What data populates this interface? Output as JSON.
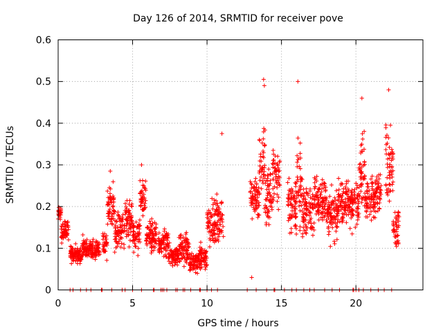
{
  "chart_data": {
    "type": "scatter",
    "title": "Day 126 of 2014, SRMTID for receiver pove",
    "xlabel": "GPS time / hours",
    "ylabel": "SRMTID / TECUs",
    "xlim": [
      0,
      24.5
    ],
    "ylim": [
      0,
      0.6
    ],
    "xticks": [
      0,
      5,
      10,
      15,
      20
    ],
    "xtick_labels": [
      "0",
      "5",
      "10",
      "15",
      "20"
    ],
    "yticks": [
      0,
      0.1,
      0.2,
      0.3,
      0.4,
      0.5,
      0.6
    ],
    "ytick_labels": [
      "0",
      "0.1",
      "0.2",
      "0.3",
      "0.4",
      "0.5",
      "0.6"
    ],
    "grid": true,
    "marker": "plus",
    "color": "#ff0000",
    "series": [
      {
        "name": "SRMTID",
        "segments": [
          {
            "x_range": [
              0.0,
              0.2
            ],
            "center": 0.185,
            "spread": 0.025
          },
          {
            "x_range": [
              0.2,
              0.7
            ],
            "center": 0.145,
            "spread": 0.035
          },
          {
            "x_range": [
              0.8,
              1.6
            ],
            "center": 0.085,
            "spread": 0.025
          },
          {
            "x_range": [
              1.6,
              2.2
            ],
            "center": 0.1,
            "spread": 0.03
          },
          {
            "x_range": [
              2.2,
              2.8
            ],
            "center": 0.095,
            "spread": 0.03
          },
          {
            "x_range": [
              3.0,
              3.3
            ],
            "center": 0.11,
            "spread": 0.04
          },
          {
            "x_range": [
              3.3,
              3.8
            ],
            "center": 0.2,
            "spread": 0.06
          },
          {
            "x_range": [
              3.8,
              4.5
            ],
            "center": 0.14,
            "spread": 0.06
          },
          {
            "x_range": [
              4.5,
              5.0
            ],
            "center": 0.17,
            "spread": 0.06
          },
          {
            "x_range": [
              5.0,
              5.5
            ],
            "center": 0.13,
            "spread": 0.05
          },
          {
            "x_range": [
              5.5,
              5.9
            ],
            "center": 0.22,
            "spread": 0.06
          },
          {
            "x_range": [
              5.9,
              6.6
            ],
            "center": 0.13,
            "spread": 0.05
          },
          {
            "x_range": [
              6.7,
              7.4
            ],
            "center": 0.11,
            "spread": 0.04
          },
          {
            "x_range": [
              7.4,
              8.1
            ],
            "center": 0.08,
            "spread": 0.03
          },
          {
            "x_range": [
              8.1,
              8.8
            ],
            "center": 0.1,
            "spread": 0.05
          },
          {
            "x_range": [
              8.8,
              9.4
            ],
            "center": 0.065,
            "spread": 0.03
          },
          {
            "x_range": [
              9.4,
              10.0
            ],
            "center": 0.08,
            "spread": 0.04
          },
          {
            "x_range": [
              10.0,
              10.6
            ],
            "center": 0.16,
            "spread": 0.06
          },
          {
            "x_range": [
              10.6,
              11.1
            ],
            "center": 0.17,
            "spread": 0.07
          },
          {
            "x_range": [
              12.9,
              13.5
            ],
            "center": 0.22,
            "spread": 0.06
          },
          {
            "x_range": [
              13.5,
              13.9
            ],
            "center": 0.3,
            "spread": 0.14
          },
          {
            "x_range": [
              13.9,
              14.4
            ],
            "center": 0.22,
            "spread": 0.08
          },
          {
            "x_range": [
              14.4,
              14.9
            ],
            "center": 0.28,
            "spread": 0.09
          },
          {
            "x_range": [
              15.4,
              16.0
            ],
            "center": 0.2,
            "spread": 0.08
          },
          {
            "x_range": [
              16.0,
              16.4
            ],
            "center": 0.26,
            "spread": 0.12
          },
          {
            "x_range": [
              16.4,
              17.2
            ],
            "center": 0.19,
            "spread": 0.07
          },
          {
            "x_range": [
              17.2,
              18.0
            ],
            "center": 0.22,
            "spread": 0.07
          },
          {
            "x_range": [
              18.0,
              18.8
            ],
            "center": 0.18,
            "spread": 0.07
          },
          {
            "x_range": [
              18.8,
              19.5
            ],
            "center": 0.21,
            "spread": 0.07
          },
          {
            "x_range": [
              19.5,
              20.2
            ],
            "center": 0.2,
            "spread": 0.08
          },
          {
            "x_range": [
              20.2,
              20.6
            ],
            "center": 0.3,
            "spread": 0.12
          },
          {
            "x_range": [
              20.6,
              21.3
            ],
            "center": 0.22,
            "spread": 0.07
          },
          {
            "x_range": [
              21.3,
              21.7
            ],
            "center": 0.23,
            "spread": 0.07
          },
          {
            "x_range": [
              22.0,
              22.5
            ],
            "center": 0.3,
            "spread": 0.12
          },
          {
            "x_range": [
              22.5,
              22.9
            ],
            "center": 0.15,
            "spread": 0.06
          }
        ],
        "peaks": [
          {
            "x": 13.8,
            "y": 0.505
          },
          {
            "x": 13.85,
            "y": 0.49
          },
          {
            "x": 16.1,
            "y": 0.5
          },
          {
            "x": 20.4,
            "y": 0.46
          },
          {
            "x": 22.2,
            "y": 0.48
          },
          {
            "x": 11.0,
            "y": 0.375
          },
          {
            "x": 3.5,
            "y": 0.285
          },
          {
            "x": 5.6,
            "y": 0.3
          },
          {
            "x": 13.0,
            "y": 0.03
          }
        ],
        "zero_points_x": [
          0.8,
          1.0,
          1.5,
          1.9,
          2.2,
          2.9,
          2.95,
          3.6,
          4.3,
          4.5,
          5.0,
          5.6,
          6.4,
          6.45,
          6.9,
          7.0,
          7.1,
          7.3,
          7.9,
          8.0,
          8.4,
          8.5,
          8.9,
          9.5,
          9.55,
          10.0,
          10.3,
          10.7,
          12.7,
          13.3,
          14.0,
          14.5,
          14.55,
          15.2,
          15.7,
          16.0,
          16.5,
          16.9,
          17.2,
          17.9,
          18.4,
          18.9,
          19.8,
          19.85,
          20.0,
          20.2,
          20.5,
          21.0,
          21.5,
          21.9,
          22.4
        ]
      }
    ]
  }
}
